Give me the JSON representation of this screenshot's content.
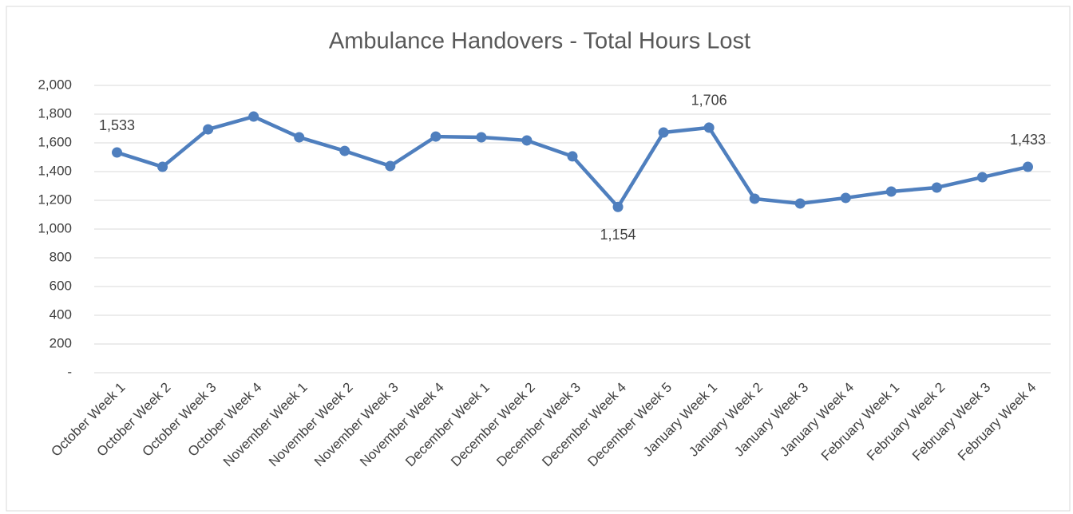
{
  "chart_data": {
    "type": "line",
    "title": "Ambulance Handovers - Total Hours Lost",
    "categories": [
      "October Week 1",
      "October Week 2",
      "October Week 3",
      "October Week 4",
      "November Week 1",
      "November Week 2",
      "November Week 3",
      "November Week 4",
      "December Week 1",
      "December Week 2",
      "December Week 3",
      "December Week 4",
      "December Week 5",
      "January Week 1",
      "January Week 2",
      "January Week 3",
      "January Week 4",
      "February Week 1",
      "February Week 2",
      "February Week 3",
      "February Week 4"
    ],
    "series": [
      {
        "name": "Total Hours Lost",
        "color": "#4f7fbe",
        "values": [
          1533,
          1433,
          1694,
          1783,
          1639,
          1544,
          1439,
          1644,
          1639,
          1617,
          1506,
          1154,
          1672,
          1706,
          1211,
          1178,
          1217,
          1261,
          1289,
          1361,
          1433
        ],
        "value_labels": [
          "1,533",
          null,
          null,
          null,
          null,
          null,
          null,
          null,
          null,
          null,
          null,
          "1,154",
          null,
          "1,706",
          null,
          null,
          null,
          null,
          null,
          null,
          "1,433"
        ]
      }
    ],
    "ylim": [
      0,
      2000
    ],
    "yticks": [
      {
        "value": 0,
        "label": "-"
      },
      200,
      400,
      600,
      800,
      {
        "value": 1000,
        "label": "1,000"
      },
      {
        "value": 1200,
        "label": "1,200"
      },
      {
        "value": 1400,
        "label": "1,400"
      },
      {
        "value": 1600,
        "label": "1,600"
      },
      {
        "value": 1800,
        "label": "1,800"
      },
      {
        "value": 2000,
        "label": "2,000"
      }
    ],
    "grid": true
  }
}
